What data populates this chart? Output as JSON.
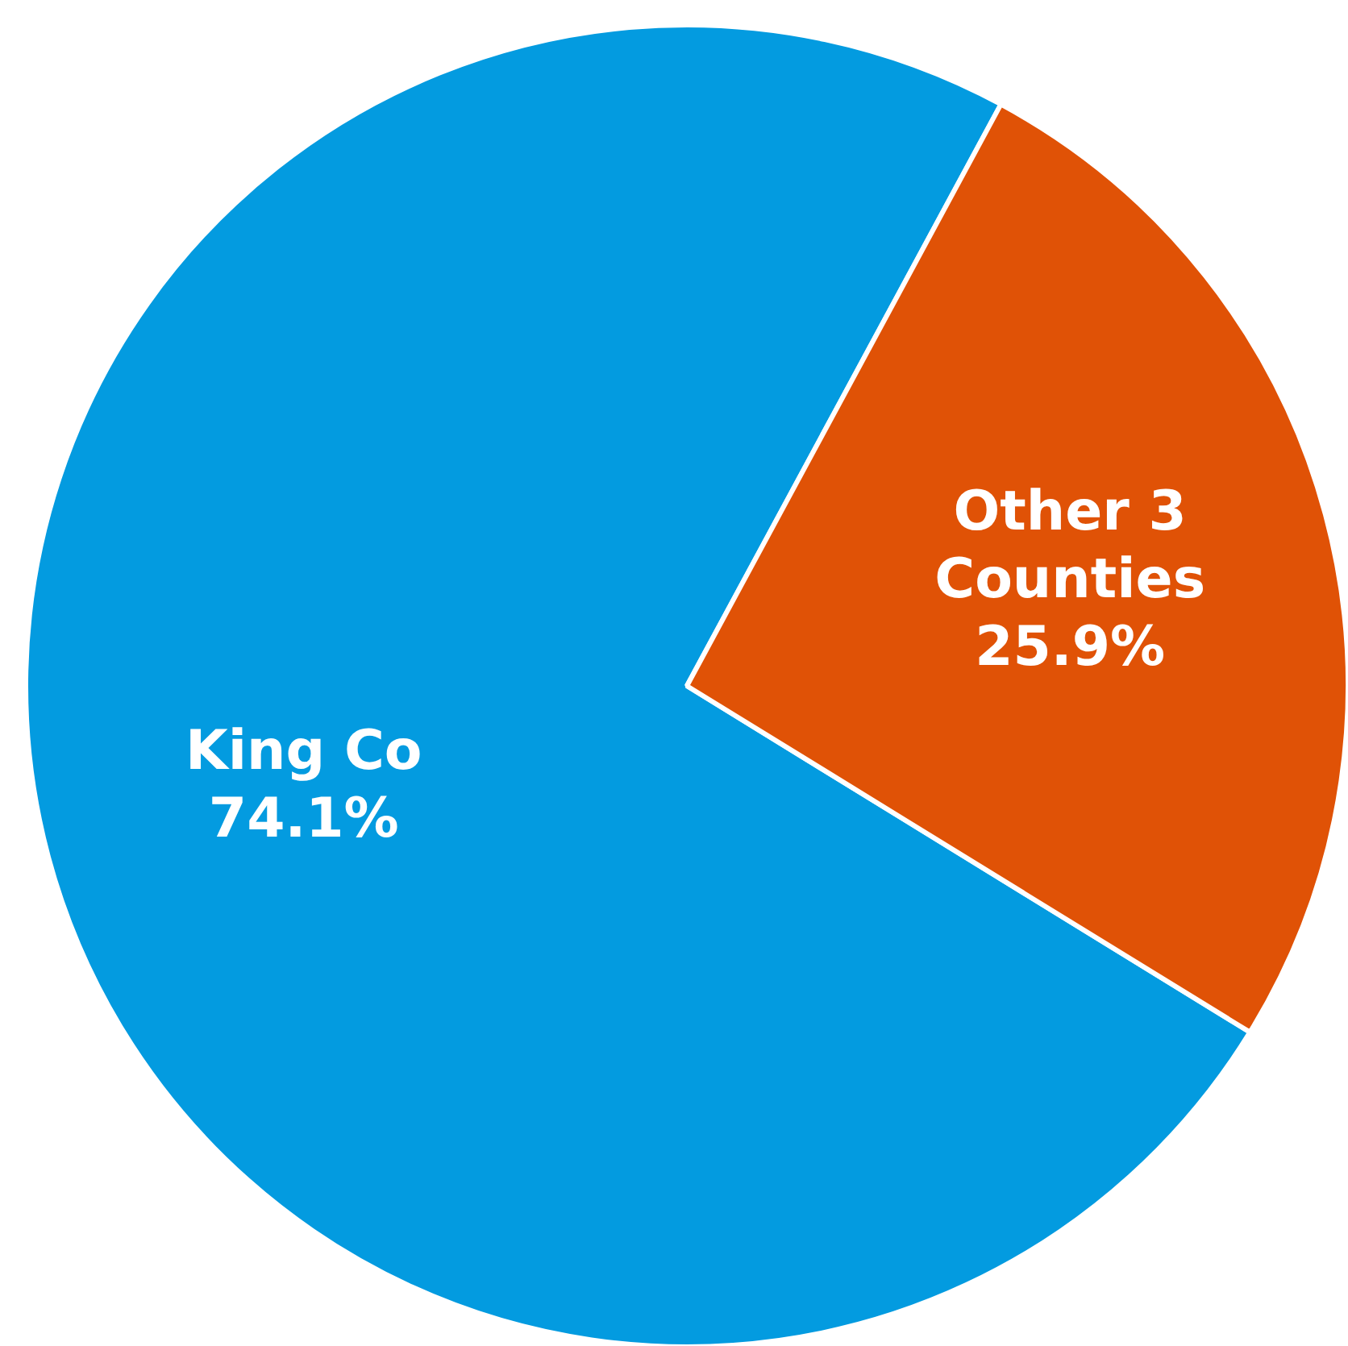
{
  "chart_data": {
    "type": "pie",
    "categories": [
      "King Co",
      "Other 3 Counties"
    ],
    "values": [
      74.1,
      25.9
    ],
    "colors": [
      "#039be0",
      "#e05206"
    ],
    "value_labels": [
      "74.1%",
      "25.9%"
    ],
    "legend": false
  }
}
